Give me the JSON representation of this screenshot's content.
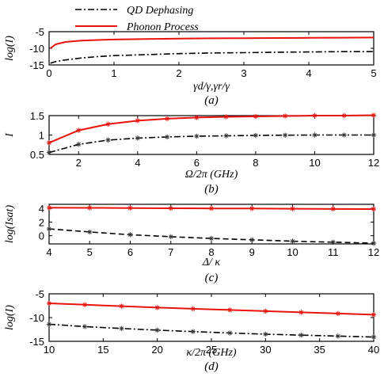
{
  "legend": {
    "entries": [
      {
        "label": "QD Dephasing",
        "color": "#000000",
        "dash": "dashdot"
      },
      {
        "label": "Phonon Process",
        "color": "#e8130b",
        "dash": "solid"
      }
    ]
  },
  "chart_data": [
    {
      "type": "line",
      "caption": "(a)",
      "xlabel": "γd/γ,γr/γ",
      "ylabel": "log(I)",
      "xlim": [
        0,
        5
      ],
      "ylim": [
        -15,
        -5
      ],
      "xticks": [
        0,
        1,
        2,
        3,
        4,
        5
      ],
      "yticks": [
        -15,
        -10,
        -5
      ],
      "series": [
        {
          "name": "Phonon Process",
          "color": "#e8130b",
          "dash": "solid",
          "marker": false,
          "x": [
            0.02,
            0.1,
            0.25,
            0.5,
            0.75,
            1,
            1.5,
            2,
            2.5,
            3,
            3.5,
            4,
            4.5,
            5
          ],
          "y": [
            -10.0,
            -8.8,
            -8.1,
            -7.7,
            -7.5,
            -7.35,
            -7.2,
            -7.1,
            -7.0,
            -6.95,
            -6.9,
            -6.85,
            -6.8,
            -6.75
          ]
        },
        {
          "name": "QD Dephasing",
          "color": "#000000",
          "dash": "dashdot",
          "marker": false,
          "x": [
            0.02,
            0.1,
            0.25,
            0.5,
            0.75,
            1,
            1.5,
            2,
            2.5,
            3,
            3.5,
            4,
            4.5,
            5
          ],
          "y": [
            -14.5,
            -14.0,
            -13.5,
            -12.9,
            -12.5,
            -12.2,
            -11.9,
            -11.6,
            -11.4,
            -11.3,
            -11.2,
            -11.1,
            -11.0,
            -11.0
          ]
        }
      ]
    },
    {
      "type": "line",
      "caption": "(b)",
      "xlabel": "Ω/2π (GHz)",
      "ylabel": "I",
      "xlim": [
        1,
        12
      ],
      "ylim": [
        0.5,
        1.5
      ],
      "xticks": [
        2,
        4,
        6,
        8,
        10,
        12
      ],
      "yticks": [
        0.5,
        1,
        1.5
      ],
      "series": [
        {
          "name": "Phonon Process",
          "color": "#e8130b",
          "dash": "solid",
          "marker": true,
          "x": [
            1,
            2,
            3,
            4,
            5,
            6,
            7,
            8,
            9,
            10,
            11,
            12
          ],
          "y": [
            0.8,
            1.12,
            1.28,
            1.37,
            1.42,
            1.45,
            1.47,
            1.48,
            1.49,
            1.5,
            1.5,
            1.51
          ]
        },
        {
          "name": "QD Dephasing",
          "color": "#000000",
          "dash": "dashdot",
          "marker": true,
          "x": [
            1,
            2,
            3,
            4,
            5,
            6,
            7,
            8,
            9,
            10,
            11,
            12
          ],
          "y": [
            0.55,
            0.76,
            0.87,
            0.92,
            0.95,
            0.97,
            0.98,
            0.99,
            0.995,
            1.0,
            1.0,
            1.0
          ]
        }
      ]
    },
    {
      "type": "line",
      "caption": "(c)",
      "xlabel": "Δ/ κ",
      "ylabel": "log(Isat)",
      "xlim": [
        4,
        12
      ],
      "ylim": [
        -1.2,
        4.6
      ],
      "xticks": [
        4,
        5,
        6,
        7,
        8,
        9,
        10,
        11,
        12
      ],
      "yticks": [
        0,
        2,
        4
      ],
      "series": [
        {
          "name": "Phonon Process",
          "color": "#e8130b",
          "dash": "solid",
          "marker": true,
          "x": [
            4,
            5,
            6,
            7,
            8,
            9,
            10,
            11,
            12
          ],
          "y": [
            4.1,
            4.08,
            4.05,
            4.02,
            4.0,
            3.98,
            3.95,
            3.92,
            3.9
          ]
        },
        {
          "name": "QD Dephasing",
          "color": "#000000",
          "dash": "dash",
          "marker": true,
          "x": [
            4,
            5,
            6,
            7,
            8,
            9,
            10,
            11,
            12
          ],
          "y": [
            1.0,
            0.55,
            0.15,
            -0.15,
            -0.4,
            -0.6,
            -0.8,
            -0.95,
            -1.1
          ]
        }
      ]
    },
    {
      "type": "line",
      "caption": "(d)",
      "xlabel": "κ/2π (GHz)",
      "ylabel": "log(I)",
      "xlim": [
        10,
        40
      ],
      "ylim": [
        -15,
        -5
      ],
      "xticks": [
        10,
        15,
        20,
        25,
        30,
        35,
        40
      ],
      "yticks": [
        -15,
        -10,
        -5
      ],
      "series": [
        {
          "name": "Phonon Process",
          "color": "#e8130b",
          "dash": "solid",
          "marker": true,
          "x": [
            10,
            13.3,
            16.7,
            20,
            23.3,
            26.7,
            30,
            33.3,
            36.7,
            40
          ],
          "y": [
            -7.0,
            -7.3,
            -7.6,
            -7.9,
            -8.15,
            -8.4,
            -8.65,
            -8.9,
            -9.15,
            -9.4
          ]
        },
        {
          "name": "QD Dephasing",
          "color": "#000000",
          "dash": "dashdot",
          "marker": true,
          "x": [
            10,
            13.3,
            16.7,
            20,
            23.3,
            26.7,
            30,
            33.3,
            36.7,
            40
          ],
          "y": [
            -11.4,
            -11.9,
            -12.3,
            -12.65,
            -12.95,
            -13.25,
            -13.5,
            -13.7,
            -13.9,
            -14.1
          ]
        }
      ]
    }
  ]
}
